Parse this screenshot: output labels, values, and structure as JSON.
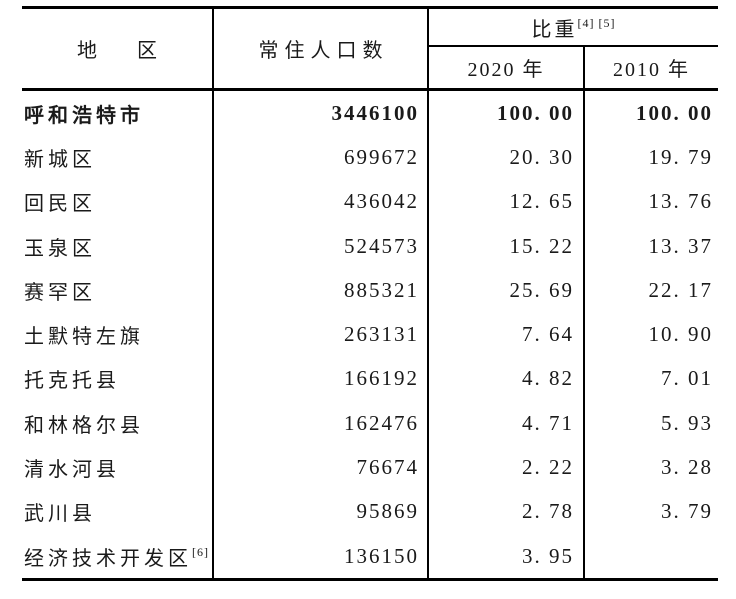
{
  "page": {
    "background_color": "#ffffff",
    "text_color": "#1a1a1a",
    "rule_color": "#000000"
  },
  "table": {
    "header": {
      "region": "地　　区",
      "population": "常住人口数",
      "weight": "比重",
      "weight_superscript": "[4] [5]",
      "col_2020": "2020 年",
      "col_2010": "2010 年"
    },
    "rows": [
      {
        "region": "呼和浩特市",
        "region_sup": "",
        "population": "3446100",
        "pct_2020": "100. 00",
        "pct_2010": "100. 00",
        "is_total": true
      },
      {
        "region": "新城区",
        "region_sup": "",
        "population": "699672",
        "pct_2020": "20. 30",
        "pct_2010": "19. 79",
        "is_total": false
      },
      {
        "region": "回民区",
        "region_sup": "",
        "population": "436042",
        "pct_2020": "12. 65",
        "pct_2010": "13. 76",
        "is_total": false
      },
      {
        "region": "玉泉区",
        "region_sup": "",
        "population": "524573",
        "pct_2020": "15. 22",
        "pct_2010": "13. 37",
        "is_total": false
      },
      {
        "region": "赛罕区",
        "region_sup": "",
        "population": "885321",
        "pct_2020": "25. 69",
        "pct_2010": "22. 17",
        "is_total": false
      },
      {
        "region": "土默特左旗",
        "region_sup": "",
        "population": "263131",
        "pct_2020": "7. 64",
        "pct_2010": "10. 90",
        "is_total": false
      },
      {
        "region": "托克托县",
        "region_sup": "",
        "population": "166192",
        "pct_2020": "4. 82",
        "pct_2010": "7. 01",
        "is_total": false
      },
      {
        "region": "和林格尔县",
        "region_sup": "",
        "population": "162476",
        "pct_2020": "4. 71",
        "pct_2010": "5. 93",
        "is_total": false
      },
      {
        "region": "清水河县",
        "region_sup": "",
        "population": "76674",
        "pct_2020": "2. 22",
        "pct_2010": "3. 28",
        "is_total": false
      },
      {
        "region": "武川县",
        "region_sup": "",
        "population": "95869",
        "pct_2020": "2. 78",
        "pct_2010": "3. 79",
        "is_total": false
      },
      {
        "region": "经济技术开发区",
        "region_sup": "[6]",
        "population": "136150",
        "pct_2020": "3. 95",
        "pct_2010": "",
        "is_total": false
      }
    ]
  }
}
